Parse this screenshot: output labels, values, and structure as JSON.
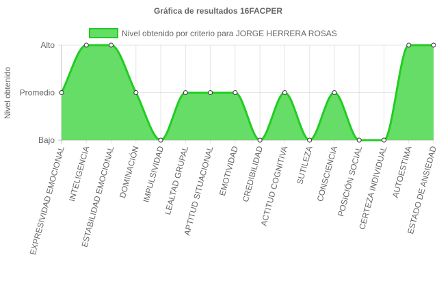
{
  "chart_data": {
    "type": "line",
    "title": "Gráfica de resultados 16FACPER",
    "ylabel": "Nivel obtenido",
    "xlabel": "",
    "y_levels": [
      "Bajo",
      "Promedio",
      "Alto"
    ],
    "ylim": [
      0,
      2
    ],
    "grid": true,
    "legend_position": "top",
    "categories": [
      "EXPRESIVIDAD EMOCIONAL",
      "INTELIGENCIA",
      "ESTABILIDAD EMOCIONAL",
      "DOMINACIÓN",
      "IMPULSIVIDAD",
      "LEALTAD GRUPAL",
      "APTITUD SITUACIONAL",
      "EMOTIVIDAD",
      "CREDIBILIDAD",
      "ACTITUD COGNITIVA",
      "SUTILEZA",
      "CONSCIENCIA",
      "POSICIÓN SOCIAL",
      "CERTEZA INDIVIDUAL",
      "AUTOESTIMA",
      "ESTADO DE ANSIEDAD"
    ],
    "series": [
      {
        "name": "Nivel obtenido por criterio para JORGE HERRERA ROSAS",
        "values": [
          1,
          2,
          2,
          1,
          0,
          1,
          1,
          1,
          0,
          1,
          0,
          1,
          0,
          0,
          2,
          2
        ],
        "color": "#22cc22",
        "fill": "#66dd66"
      }
    ]
  }
}
